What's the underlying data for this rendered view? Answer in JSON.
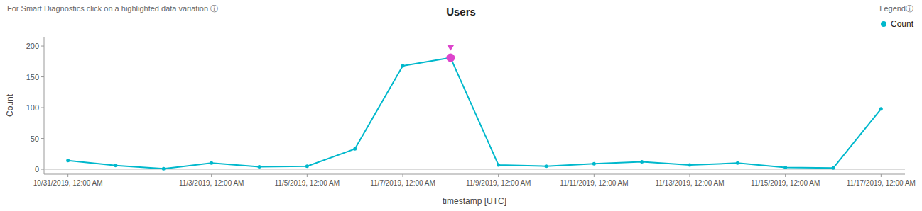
{
  "chart_data": {
    "type": "line",
    "title": "Users",
    "subtitle": "For Smart Diagnostics click on a highlighted data variation   ⓘ",
    "x_label": "timestamp [UTC]",
    "y_label": "Count",
    "legend_title": "Legendⓘ",
    "legend": "upper right",
    "grid": false,
    "categories": [
      "10/31/2019, 12:00 AM",
      null,
      null,
      "11/3/2019, 12:00 AM",
      null,
      "11/5/2019, 12:00 AM",
      null,
      "11/7/2019, 12:00 AM",
      null,
      "11/9/2019, 12:00 AM",
      null,
      "11/11/2019, 12:00 AM",
      null,
      "11/13/2019, 12:00 AM",
      null,
      "11/15/2019, 12:00 AM",
      null,
      "11/17/2019, 12:00 AM"
    ],
    "series": [
      {
        "name": "Count",
        "color": "#00b8cc",
        "marker": "circle",
        "values": [
          14,
          6,
          1,
          10,
          4,
          5,
          33,
          168,
          181,
          7,
          5,
          9,
          12,
          7,
          10,
          3,
          2,
          98
        ],
        "colors": [
          "#00b8cc",
          "#00b8cc",
          "#00b8cc",
          "#00b8cc",
          "#00b8cc",
          "#00b8cc",
          "#00b8cc",
          "#00b8cc",
          "#dd44cc",
          "#00b8cc",
          "#00b8cc",
          "#00b8cc",
          "#00b8cc",
          "#00b8cc",
          "#00b8cc",
          "#00b8cc",
          "#00b8cc",
          "#00b8cc"
        ]
      }
    ],
    "ylim": [
      -8,
      215
    ],
    "yticks": [
      0,
      50,
      100,
      150,
      200
    ]
  }
}
